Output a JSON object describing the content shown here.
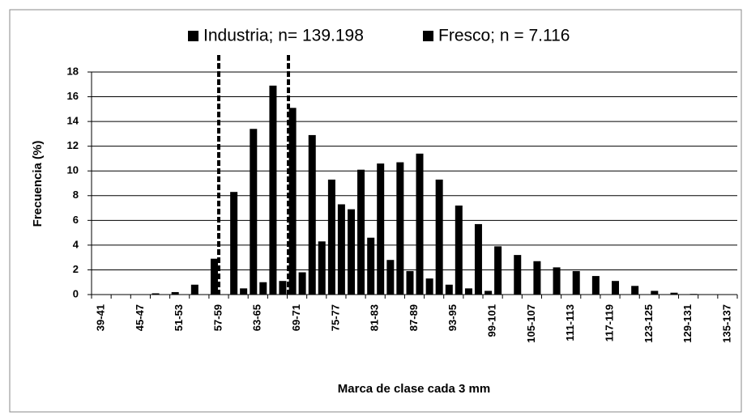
{
  "chart_data": {
    "type": "bar",
    "x_label": "Marca de clase cada 3 mm",
    "y_label": "Frecuencia (%)",
    "categories": [
      "39-41",
      null,
      "45-47",
      null,
      "51-53",
      null,
      "57-59",
      null,
      "63-65",
      null,
      "69-71",
      null,
      "75-77",
      null,
      "81-83",
      null,
      "87-89",
      null,
      "93-95",
      null,
      "99-101",
      null,
      "105-107",
      null,
      "111-113",
      null,
      "117-119",
      null,
      "123-125",
      null,
      "129-131",
      null,
      "135-137"
    ],
    "series": [
      {
        "name": "Industria; n= 139.198",
        "color": "#000000",
        "values": [
          0,
          0,
          0,
          0.1,
          0.2,
          0.8,
          2.9,
          8.3,
          13.4,
          16.9,
          15.1,
          12.9,
          9.3,
          6.9,
          4.6,
          2.8,
          1.9,
          1.3,
          0.8,
          0.5,
          0.3,
          0,
          0,
          0,
          0,
          0,
          0,
          0,
          0,
          0,
          0,
          0,
          0
        ]
      },
      {
        "name": "Fresco; n = 7.116",
        "color": "#000000",
        "values": [
          0,
          0,
          0,
          0,
          0,
          0,
          0,
          0.5,
          1.0,
          1.1,
          1.8,
          4.3,
          7.3,
          10.1,
          10.6,
          10.7,
          11.4,
          9.3,
          7.2,
          5.7,
          3.9,
          3.2,
          2.7,
          2.2,
          1.9,
          1.5,
          1.1,
          0.7,
          0.3,
          0.15,
          0.05,
          0,
          0
        ]
      }
    ],
    "ylim": [
      0,
      18
    ],
    "yticks": [
      0,
      2,
      4,
      6,
      8,
      10,
      12,
      14,
      16,
      18
    ],
    "grid": true
  }
}
